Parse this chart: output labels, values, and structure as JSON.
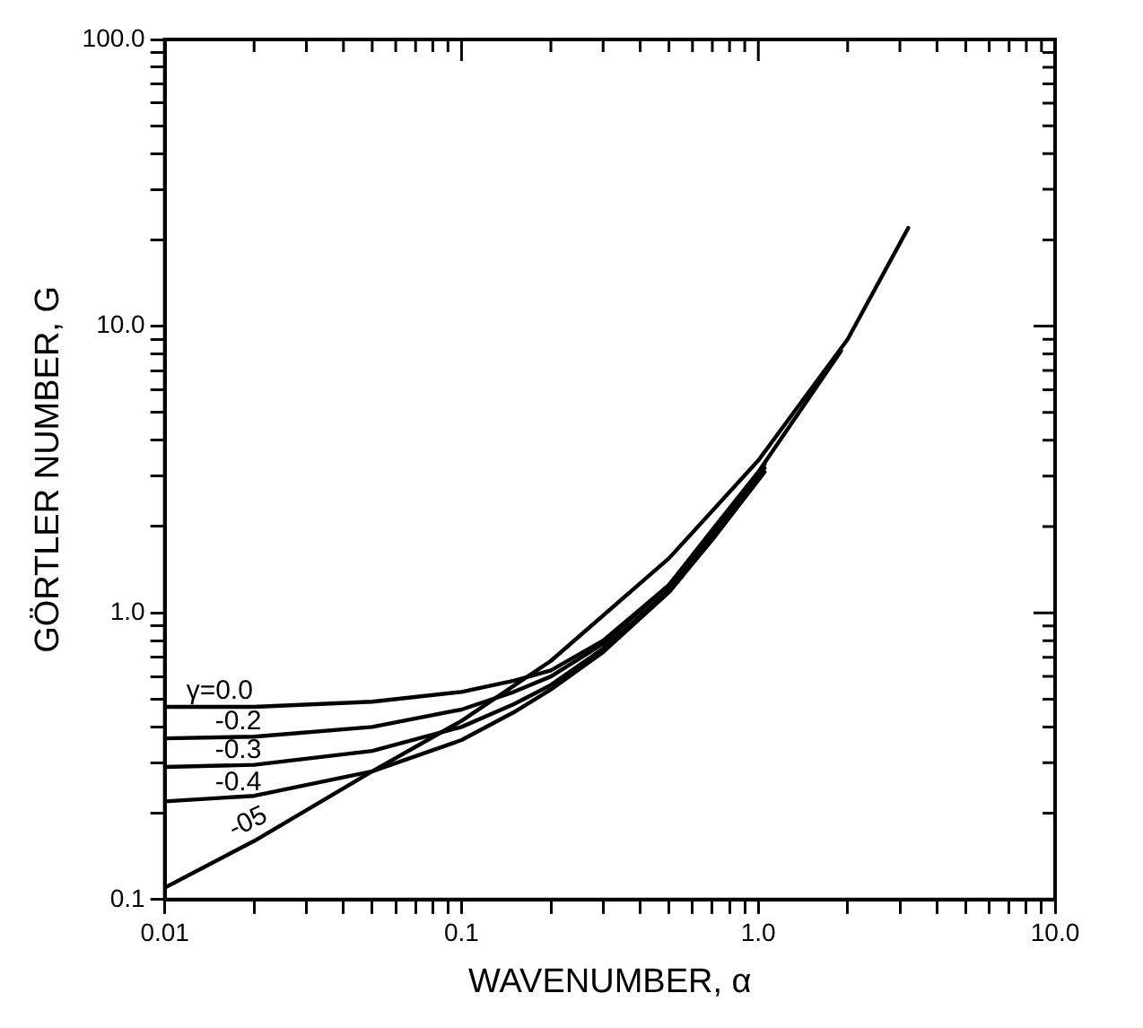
{
  "chart_data": {
    "type": "line",
    "xlabel": "WAVENUMBER, α",
    "ylabel": "GÖRTLER NUMBER, G",
    "log": "xy",
    "grid": false,
    "legend": false,
    "marker": "none",
    "line_style": "solid",
    "xlim": [
      0.01,
      10
    ],
    "ylim": [
      0.1,
      100
    ],
    "xticks": [
      {
        "value": 0.01,
        "label": "0.01"
      },
      {
        "value": 0.02,
        "label": null
      },
      {
        "value": 0.03,
        "label": null
      },
      {
        "value": 0.04,
        "label": null
      },
      {
        "value": 0.05,
        "label": null
      },
      {
        "value": 0.06,
        "label": null
      },
      {
        "value": 0.07,
        "label": null
      },
      {
        "value": 0.08,
        "label": null
      },
      {
        "value": 0.09,
        "label": null
      },
      {
        "value": 0.1,
        "label": "0.1"
      },
      {
        "value": 0.2,
        "label": null
      },
      {
        "value": 0.3,
        "label": null
      },
      {
        "value": 0.4,
        "label": null
      },
      {
        "value": 0.5,
        "label": null
      },
      {
        "value": 0.6,
        "label": null
      },
      {
        "value": 0.7,
        "label": null
      },
      {
        "value": 0.8,
        "label": null
      },
      {
        "value": 0.9,
        "label": null
      },
      {
        "value": 1,
        "label": "1.0"
      },
      {
        "value": 2,
        "label": null
      },
      {
        "value": 3,
        "label": null
      },
      {
        "value": 4,
        "label": null
      },
      {
        "value": 5,
        "label": null
      },
      {
        "value": 6,
        "label": null
      },
      {
        "value": 7,
        "label": null
      },
      {
        "value": 8,
        "label": null
      },
      {
        "value": 9,
        "label": null
      },
      {
        "value": 10,
        "label": "10.0"
      }
    ],
    "yticks": [
      {
        "value": 0.1,
        "label": "0.1"
      },
      {
        "value": 0.2,
        "label": null
      },
      {
        "value": 0.3,
        "label": null
      },
      {
        "value": 0.4,
        "label": null
      },
      {
        "value": 0.5,
        "label": null
      },
      {
        "value": 0.6,
        "label": null
      },
      {
        "value": 0.7,
        "label": null
      },
      {
        "value": 0.8,
        "label": null
      },
      {
        "value": 0.9,
        "label": null
      },
      {
        "value": 1,
        "label": "1.0"
      },
      {
        "value": 2,
        "label": null
      },
      {
        "value": 3,
        "label": null
      },
      {
        "value": 4,
        "label": null
      },
      {
        "value": 5,
        "label": null
      },
      {
        "value": 6,
        "label": null
      },
      {
        "value": 7,
        "label": null
      },
      {
        "value": 8,
        "label": null
      },
      {
        "value": 9,
        "label": null
      },
      {
        "value": 10,
        "label": "10.0"
      },
      {
        "value": 20,
        "label": null
      },
      {
        "value": 30,
        "label": null
      },
      {
        "value": 40,
        "label": null
      },
      {
        "value": 50,
        "label": null
      },
      {
        "value": 60,
        "label": null
      },
      {
        "value": 70,
        "label": null
      },
      {
        "value": 80,
        "label": null
      },
      {
        "value": 90,
        "label": null
      },
      {
        "value": 100,
        "label": "100.0"
      }
    ],
    "series": [
      {
        "name": "γ=0.0",
        "color": "#000000",
        "x": [
          0.01,
          0.02,
          0.05,
          0.1,
          0.15,
          0.2,
          0.3,
          0.5,
          0.7,
          1.05
        ],
        "values": [
          0.47,
          0.47,
          0.49,
          0.53,
          0.58,
          0.63,
          0.8,
          1.25,
          1.9,
          3.3
        ]
      },
      {
        "name": "-0.2",
        "color": "#000000",
        "x": [
          0.01,
          0.02,
          0.05,
          0.1,
          0.15,
          0.2,
          0.3,
          0.5,
          0.7,
          1.0,
          1.9
        ],
        "values": [
          0.365,
          0.37,
          0.4,
          0.46,
          0.53,
          0.6,
          0.78,
          1.25,
          1.95,
          3.1,
          8.2
        ]
      },
      {
        "name": "-0.3",
        "color": "#000000",
        "x": [
          0.01,
          0.02,
          0.05,
          0.1,
          0.15,
          0.2,
          0.3,
          0.5,
          0.7,
          1.05
        ],
        "values": [
          0.29,
          0.295,
          0.33,
          0.4,
          0.48,
          0.56,
          0.75,
          1.2,
          1.85,
          3.2
        ]
      },
      {
        "name": "-0.4",
        "color": "#000000",
        "x": [
          0.01,
          0.02,
          0.05,
          0.1,
          0.15,
          0.2,
          0.3,
          0.5,
          0.7,
          1.05
        ],
        "values": [
          0.22,
          0.23,
          0.28,
          0.36,
          0.45,
          0.54,
          0.73,
          1.18,
          1.8,
          3.1
        ]
      },
      {
        "name": "-05",
        "color": "#000000",
        "x": [
          0.01,
          0.02,
          0.05,
          0.1,
          0.2,
          0.5,
          1.0,
          2.0,
          3.2
        ],
        "values": [
          0.11,
          0.16,
          0.28,
          0.42,
          0.68,
          1.55,
          3.4,
          9,
          22
        ]
      }
    ]
  }
}
